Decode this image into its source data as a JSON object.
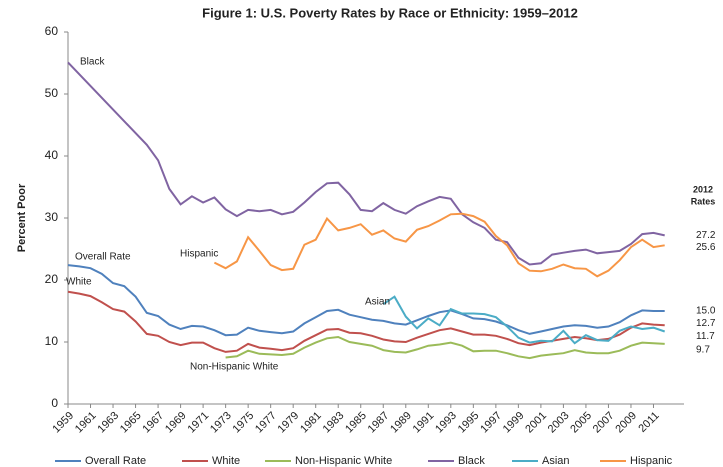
{
  "chart_data": {
    "type": "line",
    "title": "Figure 1: U.S. Poverty Rates by Race or Ethnicity: 1959–2012",
    "y_label": "Percent Poor",
    "rates_heading": [
      "2012",
      "Rates"
    ],
    "x": [
      1959,
      1960,
      1961,
      1962,
      1963,
      1964,
      1965,
      1966,
      1967,
      1968,
      1969,
      1970,
      1971,
      1972,
      1973,
      1974,
      1975,
      1976,
      1977,
      1978,
      1979,
      1980,
      1981,
      1982,
      1983,
      1984,
      1985,
      1986,
      1987,
      1988,
      1989,
      1990,
      1991,
      1992,
      1993,
      1994,
      1995,
      1996,
      1997,
      1998,
      1999,
      2000,
      2001,
      2002,
      2003,
      2004,
      2005,
      2006,
      2007,
      2008,
      2009,
      2010,
      2011,
      2012
    ],
    "xlim": [
      1959,
      2013
    ],
    "xticks": [
      1959,
      1961,
      1963,
      1965,
      1967,
      1969,
      1971,
      1973,
      1975,
      1977,
      1979,
      1981,
      1983,
      1985,
      1987,
      1989,
      1991,
      1993,
      1995,
      1997,
      1999,
      2001,
      2003,
      2005,
      2007,
      2009,
      2011
    ],
    "ylim": [
      0,
      60
    ],
    "yticks": [
      0,
      10,
      20,
      30,
      40,
      50,
      60
    ],
    "grid": false,
    "legend": "bottom",
    "series": [
      {
        "name": "Overall Rate",
        "label": "Overall Rate",
        "color": "#4f81bd",
        "end_label": "15.0",
        "values": [
          22.4,
          22.2,
          21.9,
          21.0,
          19.5,
          19.0,
          17.3,
          14.7,
          14.2,
          12.8,
          12.1,
          12.6,
          12.5,
          11.9,
          11.1,
          11.2,
          12.3,
          11.8,
          11.6,
          11.4,
          11.7,
          13.0,
          14.0,
          15.0,
          15.2,
          14.4,
          14.0,
          13.6,
          13.4,
          13.0,
          12.8,
          13.5,
          14.2,
          14.8,
          15.1,
          14.5,
          13.8,
          13.7,
          13.3,
          12.7,
          11.9,
          11.3,
          11.7,
          12.1,
          12.5,
          12.7,
          12.6,
          12.3,
          12.5,
          13.2,
          14.3,
          15.1,
          15.0,
          15.0
        ]
      },
      {
        "name": "White",
        "label": "White",
        "color": "#c0504d",
        "end_label": "12.7",
        "values": [
          18.1,
          17.8,
          17.4,
          16.4,
          15.3,
          14.9,
          13.3,
          11.3,
          11.0,
          10.0,
          9.5,
          9.9,
          9.9,
          9.0,
          8.4,
          8.6,
          9.7,
          9.1,
          8.9,
          8.7,
          9.0,
          10.2,
          11.1,
          12.0,
          12.1,
          11.5,
          11.4,
          11.0,
          10.4,
          10.1,
          10.0,
          10.7,
          11.3,
          11.9,
          12.2,
          11.7,
          11.2,
          11.2,
          11.0,
          10.5,
          9.8,
          9.5,
          9.9,
          10.2,
          10.5,
          10.8,
          10.6,
          10.3,
          10.5,
          11.2,
          12.3,
          13.0,
          12.8,
          12.7
        ]
      },
      {
        "name": "Non-Hispanic White",
        "label": "Non-Hispanic White",
        "color": "#9bbb59",
        "end_label": "9.7",
        "values": [
          null,
          null,
          null,
          null,
          null,
          null,
          null,
          null,
          null,
          null,
          null,
          null,
          null,
          null,
          7.5,
          7.7,
          8.6,
          8.1,
          8.0,
          7.9,
          8.1,
          9.1,
          9.9,
          10.6,
          10.8,
          10.0,
          9.7,
          9.4,
          8.7,
          8.4,
          8.3,
          8.8,
          9.4,
          9.6,
          9.9,
          9.4,
          8.5,
          8.6,
          8.6,
          8.2,
          7.7,
          7.4,
          7.8,
          8.0,
          8.2,
          8.7,
          8.3,
          8.2,
          8.2,
          8.6,
          9.4,
          9.9,
          9.8,
          9.7
        ]
      },
      {
        "name": "Black",
        "label": "Black",
        "color": "#8064a2",
        "end_label": "27.2",
        "x": [
          1959,
          1966,
          1967,
          1968,
          1969,
          1970,
          1971,
          1972,
          1973,
          1974,
          1975,
          1976,
          1977,
          1978,
          1979,
          1980,
          1981,
          1982,
          1983,
          1984,
          1985,
          1986,
          1987,
          1988,
          1989,
          1990,
          1991,
          1992,
          1993,
          1994,
          1995,
          1996,
          1997,
          1998,
          1999,
          2000,
          2001,
          2002,
          2003,
          2004,
          2005,
          2006,
          2007,
          2008,
          2009,
          2010,
          2011,
          2012
        ],
        "values": [
          55.1,
          41.8,
          39.3,
          34.7,
          32.2,
          33.5,
          32.5,
          33.3,
          31.4,
          30.3,
          31.3,
          31.1,
          31.3,
          30.6,
          31.0,
          32.5,
          34.2,
          35.6,
          35.7,
          33.8,
          31.3,
          31.1,
          32.4,
          31.3,
          30.7,
          31.9,
          32.7,
          33.4,
          33.1,
          30.6,
          29.3,
          28.4,
          26.5,
          26.1,
          23.6,
          22.5,
          22.7,
          24.1,
          24.4,
          24.7,
          24.9,
          24.3,
          24.5,
          24.7,
          25.8,
          27.4,
          27.6,
          27.2
        ]
      },
      {
        "name": "Asian",
        "label": "Asian",
        "color": "#4bacc6",
        "end_label": "11.7",
        "values": [
          null,
          null,
          null,
          null,
          null,
          null,
          null,
          null,
          null,
          null,
          null,
          null,
          null,
          null,
          null,
          null,
          null,
          null,
          null,
          null,
          null,
          null,
          null,
          null,
          null,
          null,
          null,
          null,
          16.1,
          17.3,
          14.1,
          12.2,
          13.8,
          12.7,
          15.3,
          14.6,
          14.6,
          14.5,
          14.0,
          12.5,
          10.7,
          9.9,
          10.2,
          10.1,
          11.8,
          9.8,
          11.1,
          10.3,
          10.2,
          11.8,
          12.5,
          12.1,
          12.3,
          11.7
        ]
      },
      {
        "name": "Hispanic",
        "label": "Hispanic",
        "color": "#f79646",
        "end_label": "25.6",
        "values": [
          null,
          null,
          null,
          null,
          null,
          null,
          null,
          null,
          null,
          null,
          null,
          null,
          null,
          22.8,
          21.9,
          23.0,
          26.9,
          24.7,
          22.4,
          21.6,
          21.8,
          25.7,
          26.5,
          29.9,
          28.0,
          28.4,
          29.0,
          27.3,
          28.0,
          26.7,
          26.2,
          28.1,
          28.7,
          29.6,
          30.6,
          30.7,
          30.3,
          29.4,
          27.1,
          25.6,
          22.7,
          21.5,
          21.4,
          21.8,
          22.5,
          21.9,
          21.8,
          20.6,
          21.5,
          23.2,
          25.3,
          26.5,
          25.3,
          25.6
        ]
      }
    ]
  }
}
